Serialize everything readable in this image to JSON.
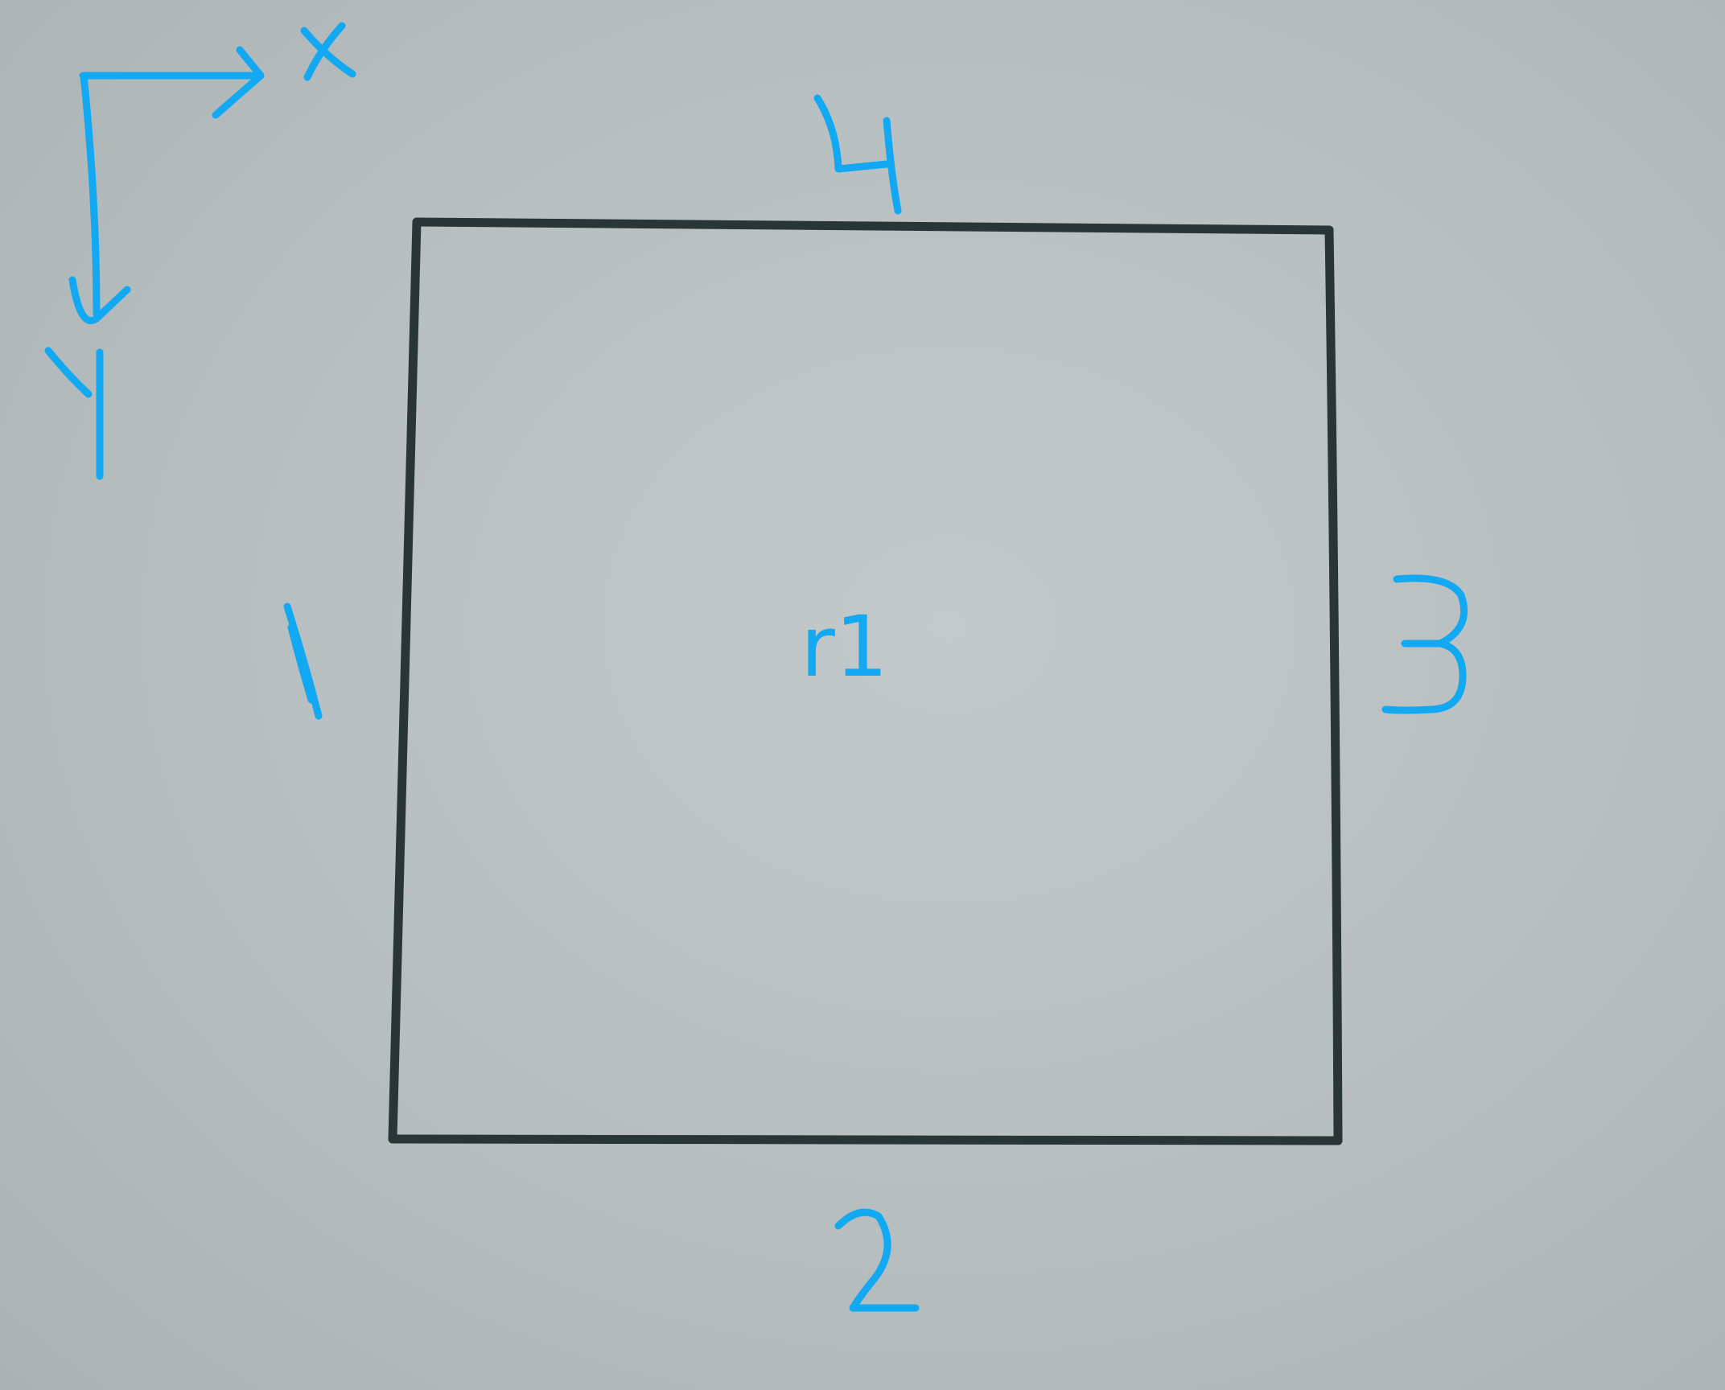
{
  "axes": {
    "x_label": "X",
    "y_label": "Y"
  },
  "region": {
    "label": "r1"
  },
  "edges": [
    {
      "id": "left",
      "label": "1"
    },
    {
      "id": "bottom",
      "label": "2"
    },
    {
      "id": "right",
      "label": "3"
    },
    {
      "id": "top",
      "label": "4"
    }
  ],
  "colors": {
    "pen": "#12a8f2",
    "pencil": "#2a3538",
    "paper": "#bcc3c5"
  }
}
